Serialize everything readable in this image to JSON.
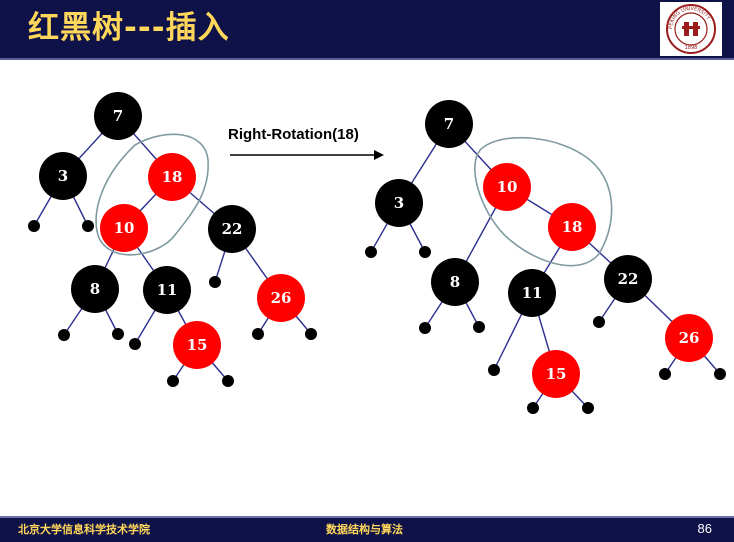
{
  "header": {
    "title": "红黑树---插入",
    "logo_text": "PEKING UNIVERSITY",
    "logo_year": "1898"
  },
  "diagram": {
    "rotation_label": "Right-Rotation(18)",
    "before": {
      "nodes": [
        {
          "key": "7",
          "color": "black"
        },
        {
          "key": "3",
          "color": "black"
        },
        {
          "key": "18",
          "color": "red"
        },
        {
          "key": "10",
          "color": "red"
        },
        {
          "key": "22",
          "color": "black"
        },
        {
          "key": "8",
          "color": "black"
        },
        {
          "key": "11",
          "color": "black"
        },
        {
          "key": "26",
          "color": "red"
        },
        {
          "key": "15",
          "color": "red"
        }
      ]
    },
    "after": {
      "nodes": [
        {
          "key": "7",
          "color": "black"
        },
        {
          "key": "3",
          "color": "black"
        },
        {
          "key": "10",
          "color": "red"
        },
        {
          "key": "18",
          "color": "red"
        },
        {
          "key": "8",
          "color": "black"
        },
        {
          "key": "11",
          "color": "black"
        },
        {
          "key": "22",
          "color": "black"
        },
        {
          "key": "26",
          "color": "red"
        },
        {
          "key": "15",
          "color": "red"
        }
      ]
    },
    "colors": {
      "black": "#000000",
      "red": "#ff0000",
      "edge": "#2b2f8f",
      "highlight": "#7f9aa0"
    }
  },
  "footer": {
    "left": "北京大学信息科学技术学院",
    "middle": "数据结构与算法",
    "page": "86"
  }
}
